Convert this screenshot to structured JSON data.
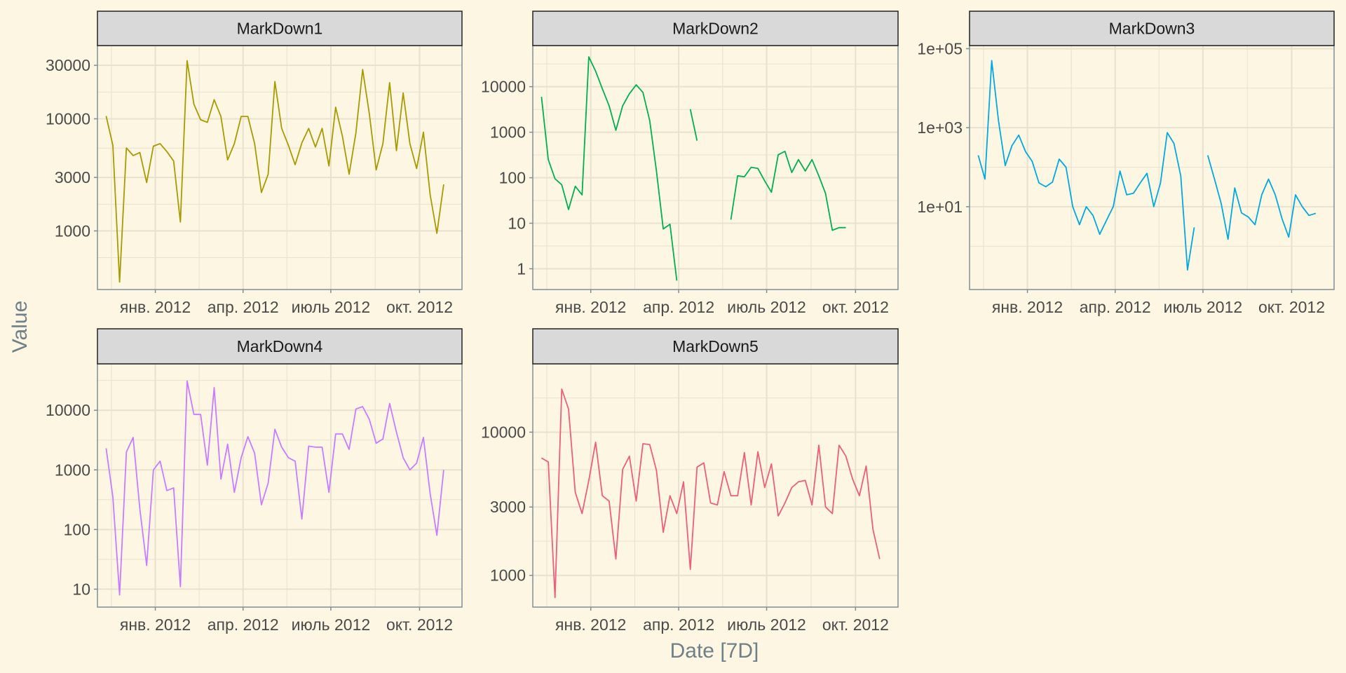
{
  "figure": {
    "xlabel": "Date [7D]",
    "ylabel": "Value",
    "background": "#fdf6e3",
    "panel_background": "#fdf6e3",
    "strip_background": "#d9d9d9",
    "panel_border": "#7f8f98",
    "grid_color": "#e8e1cd"
  },
  "chart_data": [
    {
      "type": "line",
      "title": "MarkDown1",
      "color": "#a89a00",
      "y_scale": "log10",
      "ylim": [
        300,
        45000
      ],
      "yticks": [
        1000,
        3000,
        10000,
        30000
      ],
      "ytick_labels": [
        "1000",
        "3000",
        "10000",
        "30000"
      ],
      "xlim": [
        "2011-11-02",
        "2012-11-14"
      ],
      "xticks": [
        "2012-01-01",
        "2012-04-01",
        "2012-07-01",
        "2012-10-01"
      ],
      "xtick_labels": [
        "янв. 2012",
        "апр. 2012",
        "июль 2012",
        "окт. 2012"
      ],
      "x_start": "2011-11-11",
      "x_step_days": 7,
      "values": [
        10600,
        5800,
        350,
        5500,
        4700,
        5000,
        2700,
        5700,
        6000,
        5100,
        4200,
        1200,
        33000,
        13500,
        9800,
        9300,
        14800,
        10500,
        4300,
        6000,
        10500,
        10500,
        6000,
        2200,
        3200,
        21500,
        8200,
        5800,
        3900,
        6100,
        8200,
        5600,
        8200,
        3800,
        12700,
        7000,
        3200,
        7500,
        27500,
        11000,
        3500,
        6000,
        21000,
        5200,
        17000,
        6000,
        3600,
        7600,
        2100,
        950,
        2600
      ]
    },
    {
      "type": "line",
      "title": "MarkDown2",
      "color": "#00b050",
      "y_scale": "log10",
      "ylim": [
        0.35,
        80000
      ],
      "yticks": [
        1,
        10,
        100,
        1000,
        10000
      ],
      "ytick_labels": [
        "1",
        "10",
        "100",
        "1000",
        "10000"
      ],
      "xlim": [
        "2011-11-02",
        "2012-11-14"
      ],
      "xticks": [
        "2012-01-01",
        "2012-04-01",
        "2012-07-01",
        "2012-10-01"
      ],
      "xtick_labels": [
        "янв. 2012",
        "апр. 2012",
        "июль 2012",
        "окт. 2012"
      ],
      "x_start": "2011-11-11",
      "x_step_days": 7,
      "values": [
        6000,
        250,
        95,
        70,
        20,
        65,
        42,
        45000,
        22000,
        9000,
        3800,
        1100,
        3800,
        7000,
        11000,
        7500,
        1800,
        140,
        7.5,
        9.5,
        0.55,
        null,
        3200,
        650,
        null,
        null,
        null,
        null,
        12,
        110,
        105,
        170,
        160,
        85,
        48,
        320,
        380,
        130,
        250,
        140,
        250,
        110,
        45,
        7,
        8,
        8
      ]
    },
    {
      "type": "line",
      "title": "MarkDown3",
      "color": "#00a9e0",
      "y_scale": "log10",
      "ylim": [
        0.08,
        120000
      ],
      "yticks": [
        10,
        1000,
        100000
      ],
      "ytick_labels": [
        "1e+01",
        "1e+03",
        "1e+05"
      ],
      "xlim": [
        "2011-11-02",
        "2012-11-14"
      ],
      "xticks": [
        "2012-01-01",
        "2012-04-01",
        "2012-07-01",
        "2012-10-01"
      ],
      "xtick_labels": [
        "янв. 2012",
        "апр. 2012",
        "июль 2012",
        "окт. 2012"
      ],
      "x_start": "2011-11-11",
      "x_step_days": 7,
      "values": [
        200,
        50,
        50000,
        1500,
        110,
        350,
        650,
        250,
        140,
        40,
        32,
        42,
        160,
        100,
        10,
        3.5,
        10,
        6,
        2,
        4.5,
        10,
        80,
        20,
        22,
        40,
        70,
        10,
        40,
        750,
        400,
        60,
        0.25,
        3,
        null,
        200,
        50,
        12,
        1.5,
        30,
        7,
        5.5,
        3.5,
        20,
        50,
        20,
        5,
        1.7,
        20,
        10,
        6,
        6.8
      ]
    },
    {
      "type": "line",
      "title": "MarkDown4",
      "color": "#c77cff",
      "y_scale": "log10",
      "ylim": [
        5,
        60000
      ],
      "yticks": [
        10,
        100,
        1000,
        10000
      ],
      "ytick_labels": [
        "10",
        "100",
        "1000",
        "10000"
      ],
      "xlim": [
        "2011-11-02",
        "2012-11-14"
      ],
      "xticks": [
        "2012-01-01",
        "2012-04-01",
        "2012-07-01",
        "2012-10-01"
      ],
      "xtick_labels": [
        "янв. 2012",
        "апр. 2012",
        "июль 2012",
        "окт. 2012"
      ],
      "x_start": "2011-11-11",
      "x_step_days": 7,
      "values": [
        2300,
        350,
        8,
        2000,
        3500,
        220,
        25,
        1000,
        1400,
        450,
        500,
        11,
        31000,
        8500,
        8500,
        1200,
        24000,
        700,
        2700,
        420,
        1600,
        3600,
        1900,
        260,
        600,
        4800,
        2400,
        1600,
        1400,
        150,
        2500,
        2400,
        2400,
        420,
        4000,
        4000,
        2200,
        10500,
        11500,
        7000,
        2800,
        3300,
        13000,
        4300,
        1600,
        1000,
        1300,
        3500,
        400,
        80,
        1000
      ]
    },
    {
      "type": "line",
      "title": "MarkDown5",
      "color": "#ec5f7a",
      "y_scale": "log10",
      "ylim": [
        600,
        30000
      ],
      "yticks": [
        1000,
        3000,
        10000
      ],
      "ytick_labels": [
        "1000",
        "3000",
        "10000"
      ],
      "xlim": [
        "2011-11-02",
        "2012-11-14"
      ],
      "xticks": [
        "2012-01-01",
        "2012-04-01",
        "2012-07-01",
        "2012-10-01"
      ],
      "xtick_labels": [
        "янв. 2012",
        "апр. 2012",
        "июль 2012",
        "окт. 2012"
      ],
      "x_start": "2011-11-11",
      "x_step_days": 7,
      "values": [
        6600,
        6200,
        700,
        20000,
        14500,
        3800,
        2700,
        4600,
        8500,
        3600,
        3300,
        1300,
        5500,
        6800,
        3300,
        8300,
        8200,
        5400,
        2000,
        3600,
        2700,
        4500,
        1100,
        5700,
        6100,
        3200,
        3100,
        5300,
        3600,
        3600,
        7200,
        3100,
        7300,
        4100,
        6000,
        2600,
        3200,
        4100,
        4500,
        4600,
        3100,
        8100,
        3000,
        2700,
        8100,
        6800,
        4700,
        3600,
        5800,
        2100,
        1300
      ]
    }
  ]
}
